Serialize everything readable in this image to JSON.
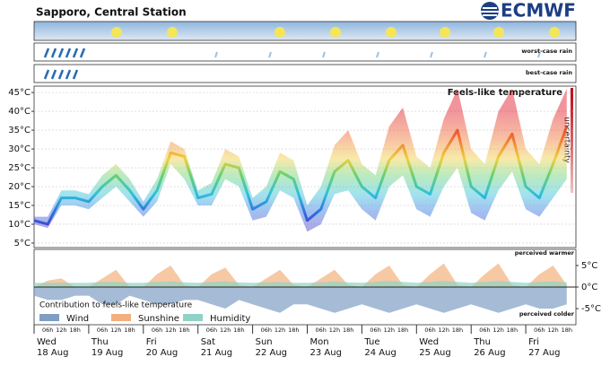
{
  "chart_data": {
    "type": "meteogram",
    "title": "Sapporo, Central Station",
    "logo": "ECMWF",
    "rain_rows": [
      "worst-case rain",
      "best-case rain"
    ],
    "main_title": "Feels-like temperature",
    "uncertainty_label": "uncertainty",
    "days": [
      {
        "weekday": "Wed",
        "date": "18 Aug"
      },
      {
        "weekday": "Thu",
        "date": "19 Aug"
      },
      {
        "weekday": "Fri",
        "date": "20 Aug"
      },
      {
        "weekday": "Sat",
        "date": "21 Aug"
      },
      {
        "weekday": "Sun",
        "date": "22 Aug"
      },
      {
        "weekday": "Mon",
        "date": "23 Aug"
      },
      {
        "weekday": "Tue",
        "date": "24 Aug"
      },
      {
        "weekday": "Wed",
        "date": "25 Aug"
      },
      {
        "weekday": "Thu",
        "date": "26 Aug"
      },
      {
        "weekday": "Fri",
        "date": "27 Aug"
      }
    ],
    "hour_labels": [
      "06h",
      "12h",
      "18h"
    ],
    "ylim": [
      3.8,
      46.7
    ],
    "yticks": [
      {
        "value": 5,
        "label": "5°C"
      },
      {
        "value": 10,
        "label": "10°C"
      },
      {
        "value": 15,
        "label": "15°C"
      },
      {
        "value": 20,
        "label": "20°C"
      },
      {
        "value": 25,
        "label": "25°C"
      },
      {
        "value": 30,
        "label": "30°C"
      },
      {
        "value": 35,
        "label": "35°C"
      },
      {
        "value": 40,
        "label": "40°C"
      },
      {
        "value": 45,
        "label": "45°C"
      }
    ],
    "median": [
      11,
      10,
      17,
      17,
      16,
      20,
      23,
      19,
      14,
      19,
      29,
      28,
      17,
      18,
      26,
      25,
      14,
      16,
      24,
      22,
      11,
      14,
      24,
      27,
      20,
      17,
      27,
      31,
      20,
      18,
      29,
      35,
      20,
      17,
      28,
      34,
      20,
      17,
      26,
      36
    ],
    "band": {
      "low": [
        10,
        9,
        15,
        15,
        14,
        17,
        20,
        16,
        12,
        16,
        26,
        22,
        15,
        15,
        22,
        20,
        11,
        12,
        19,
        17,
        8,
        10,
        18,
        19,
        14,
        11,
        20,
        23,
        14,
        12,
        20,
        25,
        13,
        11,
        19,
        24,
        14,
        12,
        17,
        22
      ],
      "high": [
        12,
        12,
        19,
        19,
        18,
        23,
        26,
        22,
        16,
        22,
        32,
        30,
        19,
        21,
        30,
        28,
        17,
        20,
        29,
        27,
        15,
        20,
        31,
        35,
        26,
        23,
        36,
        41,
        28,
        25,
        38,
        46,
        30,
        26,
        40,
        46,
        30,
        26,
        38,
        46
      ]
    },
    "contrib_title": "Contribution to feels-like temperature",
    "warmer_label": "perceived warmer",
    "colder_label": "perceived colder",
    "y2lim": [
      -8.75,
      8.75
    ],
    "y2ticks": [
      {
        "value": 5,
        "label": "5°C"
      },
      {
        "value": 0,
        "label": "0°C"
      },
      {
        "value": -5,
        "label": "-5°C"
      }
    ],
    "series": [
      {
        "name": "Wind",
        "color": "#7f9ec4",
        "values": [
          -2,
          -3,
          -3,
          -2,
          -2,
          -4,
          -4,
          -2,
          -3,
          -4,
          -4,
          -3,
          -3,
          -4,
          -5,
          -3,
          -4,
          -5,
          -6,
          -4,
          -4,
          -5,
          -6,
          -5,
          -4,
          -5,
          -6,
          -5,
          -4,
          -5,
          -6,
          -5,
          -4,
          -5,
          -6,
          -5,
          -4,
          -5,
          -5,
          -4
        ]
      },
      {
        "name": "Sunshine",
        "color": "#f2b07e",
        "values": [
          0,
          1.5,
          2,
          0,
          0,
          2,
          4,
          0,
          0,
          3,
          5,
          0.5,
          0,
          3,
          4.5,
          0.5,
          0,
          2,
          4,
          0.5,
          0,
          2,
          4,
          0.5,
          0,
          3,
          5,
          0.5,
          0,
          3,
          5.5,
          0.5,
          0,
          3,
          5.5,
          0.5,
          0,
          3,
          5,
          0.5
        ]
      },
      {
        "name": "Humidity",
        "color": "#8fd3c6",
        "values": [
          1,
          1,
          1,
          1,
          1,
          1.2,
          1.2,
          1,
          1,
          1.2,
          1.3,
          1.1,
          1,
          1.2,
          1.3,
          1.1,
          1,
          1.1,
          1.2,
          1,
          1,
          1.1,
          1.3,
          1.1,
          1,
          1.2,
          1.4,
          1.2,
          1,
          1.2,
          1.4,
          1.2,
          1,
          1.2,
          1.4,
          1.2,
          1,
          1.2,
          1.3,
          1.1
        ]
      }
    ]
  }
}
